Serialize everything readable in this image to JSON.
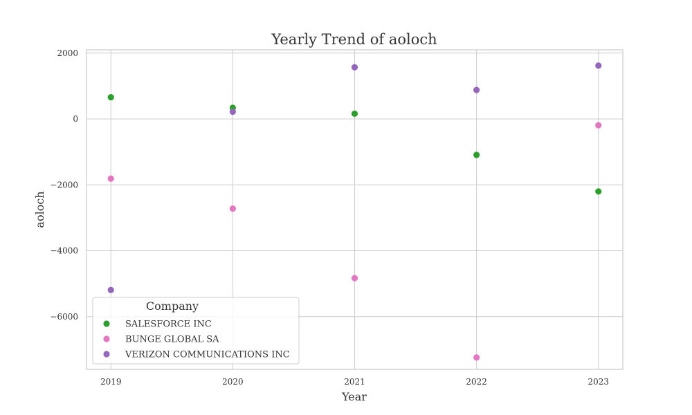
{
  "chart_data": {
    "type": "scatter",
    "title": "Yearly Trend of aoloch",
    "xlabel": "Year",
    "ylabel": "aoloch",
    "x": [
      2019,
      2020,
      2021,
      2022,
      2023
    ],
    "xlim": [
      2018.8,
      2023.2
    ],
    "ylim": [
      -7600,
      2100
    ],
    "yticks": [
      2000,
      0,
      -2000,
      -4000,
      -6000
    ],
    "ytick_labels": [
      "2000",
      "0",
      "−2000",
      "−4000",
      "−6000"
    ],
    "xtick_labels": [
      "2019",
      "2020",
      "2021",
      "2022",
      "2023"
    ],
    "grid": true,
    "legend": {
      "title": "Company",
      "placement": "lower-left"
    },
    "series": [
      {
        "name": "SALESFORCE INC",
        "color": "#2ca02c",
        "values": [
          660,
          340,
          160,
          -1090,
          -2200
        ]
      },
      {
        "name": "BUNGE GLOBAL SA",
        "color": "#e377c2",
        "values": [
          -1810,
          -2720,
          -4830,
          -7240,
          -190
        ]
      },
      {
        "name": "VERIZON COMMUNICATIONS INC",
        "color": "#9467bd",
        "values": [
          -5190,
          220,
          1570,
          880,
          1620
        ]
      }
    ]
  }
}
